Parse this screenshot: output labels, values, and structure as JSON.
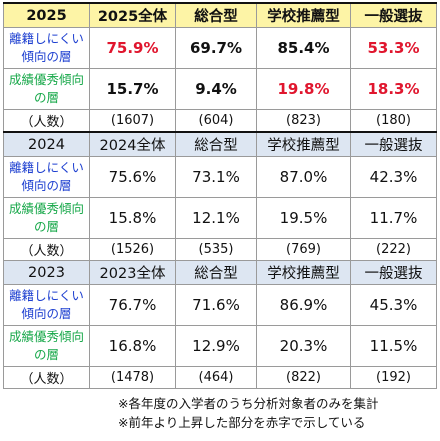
{
  "columns": [
    "総合型",
    "学校推薦型",
    "一般選抜"
  ],
  "row_labels": {
    "hard_to_drop": "離籍しにくい傾向の層",
    "high_achiever": "成績優秀傾向の層",
    "count": "（人数）"
  },
  "years": [
    {
      "year": "2025",
      "total_label": "2025全体",
      "hard_to_drop": [
        "75.9%",
        "69.7%",
        "85.4%",
        "53.3%"
      ],
      "high_achiever": [
        "15.7%",
        "9.4%",
        "19.8%",
        "18.3%"
      ],
      "count": [
        "(1607)",
        "(604)",
        "(823)",
        "(180)"
      ]
    },
    {
      "year": "2024",
      "total_label": "2024全体",
      "hard_to_drop": [
        "75.6%",
        "73.1%",
        "87.0%",
        "42.3%"
      ],
      "high_achiever": [
        "15.8%",
        "12.1%",
        "19.5%",
        "11.7%"
      ],
      "count": [
        "(1526)",
        "(535)",
        "(769)",
        "(222)"
      ]
    },
    {
      "year": "2023",
      "total_label": "2023全体",
      "hard_to_drop": [
        "76.7%",
        "71.6%",
        "86.9%",
        "45.3%"
      ],
      "high_achiever": [
        "16.8%",
        "12.9%",
        "20.3%",
        "11.5%"
      ],
      "count": [
        "(1478)",
        "(464)",
        "(822)",
        "(192)"
      ]
    }
  ],
  "notes": [
    "※各年度の入学者のうち分析対象者のみを集計",
    "※前年より上昇した部分を赤字で示している"
  ],
  "colors": {
    "header_2025": "#fdf4a6",
    "header_other": "#dde6f2",
    "label_blue": "#1d3fd0",
    "label_green": "#18a84a",
    "increase_red": "#e0162e"
  }
}
